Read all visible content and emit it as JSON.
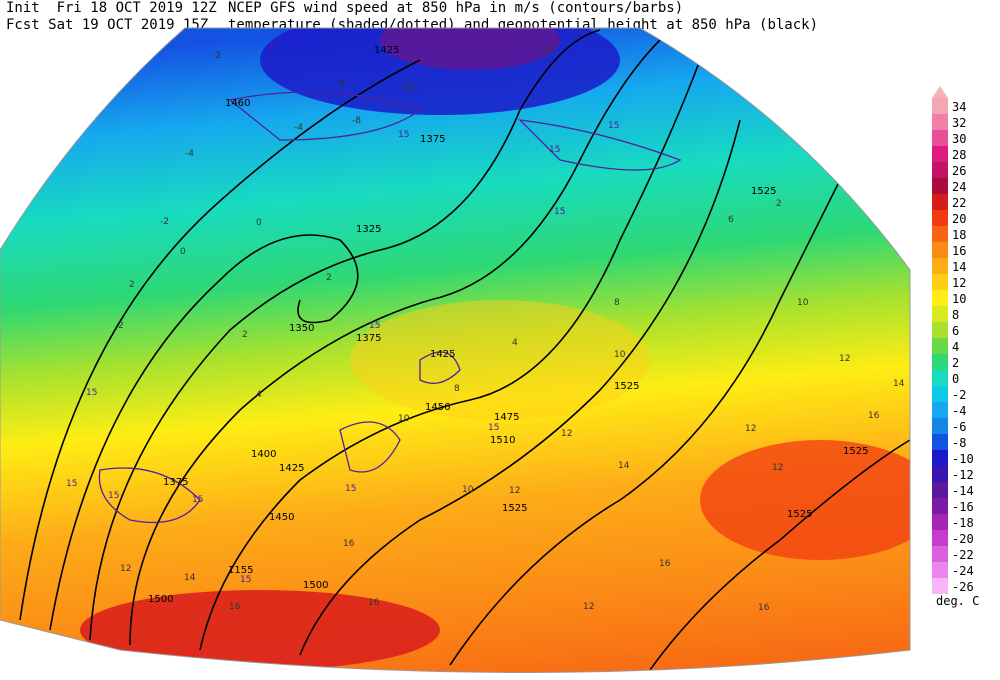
{
  "header": {
    "left": [
      "Init  Fri 18 OCT 2019 12Z",
      "Fcst Sat 19 OCT 2019 15Z"
    ],
    "right": [
      "NCEP GFS wind speed at 850 hPa in m/s (contours/barbs)",
      "temperature (shaded/dotted) and geopotential height at 850 hPa (black)"
    ]
  },
  "legend": {
    "top_arrow_color": "#f3b3b8",
    "levels": [
      {
        "label": "34",
        "color": "#f5a6b4"
      },
      {
        "label": "32",
        "color": "#f27ea7"
      },
      {
        "label": "30",
        "color": "#e94f98"
      },
      {
        "label": "28",
        "color": "#df1a83"
      },
      {
        "label": "26",
        "color": "#c41265"
      },
      {
        "label": "24",
        "color": "#a90d3b"
      },
      {
        "label": "22",
        "color": "#d81c1c"
      },
      {
        "label": "20",
        "color": "#f23b12"
      },
      {
        "label": "18",
        "color": "#f76414"
      },
      {
        "label": "16",
        "color": "#fb8a16"
      },
      {
        "label": "14",
        "color": "#fdac18"
      },
      {
        "label": "12",
        "color": "#ffcf18"
      },
      {
        "label": "10",
        "color": "#ffed14"
      },
      {
        "label": "8",
        "color": "#d6ec1f"
      },
      {
        "label": "6",
        "color": "#a8e22e"
      },
      {
        "label": "4",
        "color": "#68d94a"
      },
      {
        "label": "2",
        "color": "#2ed874"
      },
      {
        "label": "0",
        "color": "#18dbc0"
      },
      {
        "label": "-2",
        "color": "#0fc8ea"
      },
      {
        "label": "-4",
        "color": "#16a8ee"
      },
      {
        "label": "-6",
        "color": "#1784e8"
      },
      {
        "label": "-8",
        "color": "#1452e2"
      },
      {
        "label": "-10",
        "color": "#1b1bc9"
      },
      {
        "label": "-12",
        "color": "#3a16b0"
      },
      {
        "label": "-14",
        "color": "#5b1898"
      },
      {
        "label": "-16",
        "color": "#7b1aa8"
      },
      {
        "label": "-18",
        "color": "#a626b8"
      },
      {
        "label": "-20",
        "color": "#c53dcf"
      },
      {
        "label": "-22",
        "color": "#dc5fe0"
      },
      {
        "label": "-24",
        "color": "#ec86ec"
      },
      {
        "label": "-26",
        "color": "#f7b4f6"
      }
    ],
    "units": "deg. C"
  },
  "map": {
    "height_labels": [
      "1425",
      "1460",
      "1375",
      "1325",
      "1350",
      "1375",
      "1425",
      "1456",
      "1475",
      "1510",
      "1400",
      "1425",
      "1375",
      "1450",
      "1155",
      "1500",
      "1500",
      "1525",
      "1525",
      "1525",
      "1525",
      "1525"
    ],
    "temp_labels": [
      "-4",
      "-2",
      "-2",
      "0",
      "2",
      "2",
      "2",
      "2",
      "4",
      "4",
      "6",
      "8",
      "8",
      "10",
      "10",
      "10",
      "12",
      "12",
      "12",
      "12",
      "14",
      "14",
      "16",
      "16",
      "16",
      "16",
      "12",
      "14",
      "12",
      "10",
      "12",
      "16",
      "16",
      "2",
      "0",
      "-4",
      "-8",
      "-8",
      "-10",
      "-12"
    ],
    "wind_labels": [
      "15",
      "15",
      "15",
      "15",
      "15",
      "15",
      "15",
      "15",
      "15",
      "15",
      "15",
      "15",
      "15"
    ]
  }
}
